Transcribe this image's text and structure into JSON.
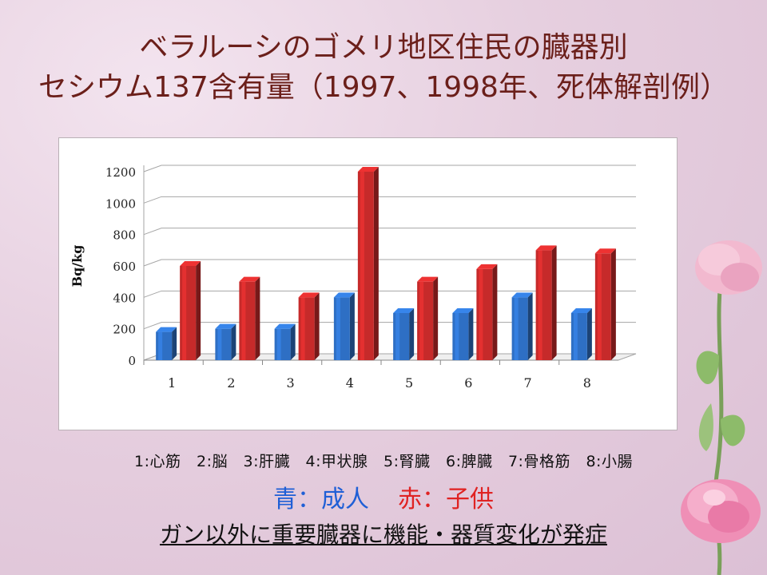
{
  "title": {
    "line1": "ベラルーシのゴメリ地区住民の臓器別",
    "line2": "セシウム137含有量（1997、1998年、死体解剖例）"
  },
  "chart_data": {
    "type": "bar",
    "categories": [
      "1",
      "2",
      "3",
      "4",
      "5",
      "6",
      "7",
      "8"
    ],
    "series": [
      {
        "values": [
          180,
          200,
          200,
          400,
          300,
          300,
          400,
          300
        ],
        "color": "#2e6fc4"
      },
      {
        "values": [
          600,
          500,
          400,
          1200,
          500,
          580,
          700,
          680
        ],
        "color": "#c62a2a"
      }
    ],
    "ylabel": "Bq/kg",
    "ylim": [
      0,
      1200
    ],
    "yticks": [
      "0",
      "200",
      "400",
      "600",
      "800",
      "1000",
      "1200"
    ],
    "grid": true,
    "style": "3d-columns"
  },
  "legend": {
    "organs": "1:心筋　2:脳　3:肝臓　4:甲状腺　5:腎臓　6:脾臓　7:骨格筋　8:小腸",
    "blue_label": "青：成人",
    "red_label": "赤：子供"
  },
  "conclusion": "ガン以外に重要臓器に機能・器質変化が発症"
}
